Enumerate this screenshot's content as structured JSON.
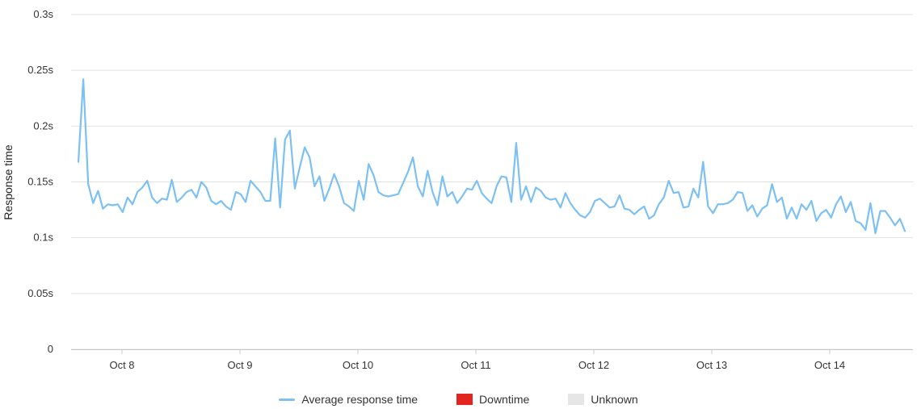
{
  "chart_data": {
    "type": "line",
    "ylabel": "Response time",
    "yticks": [
      "0",
      "0.05s",
      "0.1s",
      "0.15s",
      "0.2s",
      "0.25s",
      "0.3s"
    ],
    "ylim": [
      0,
      0.3
    ],
    "xticks": [
      "Oct 8",
      "Oct 9",
      "Oct 10",
      "Oct 11",
      "Oct 12",
      "Oct 13",
      "Oct 14"
    ],
    "grid": true,
    "legend_position": "bottom",
    "colors": {
      "line": "#7cc0f4",
      "downtime": "#e32522",
      "unknown": "#e6e6e6",
      "grid": "#e2e2e2"
    },
    "series": [
      {
        "name": "Average response time",
        "values": [
          0.168,
          0.242,
          0.148,
          0.131,
          0.142,
          0.126,
          0.13,
          0.129,
          0.13,
          0.123,
          0.136,
          0.13,
          0.141,
          0.145,
          0.151,
          0.136,
          0.131,
          0.135,
          0.134,
          0.152,
          0.132,
          0.136,
          0.141,
          0.143,
          0.136,
          0.15,
          0.145,
          0.133,
          0.13,
          0.133,
          0.128,
          0.125,
          0.141,
          0.139,
          0.132,
          0.151,
          0.146,
          0.141,
          0.133,
          0.133,
          0.189,
          0.127,
          0.188,
          0.196,
          0.144,
          0.163,
          0.181,
          0.172,
          0.146,
          0.155,
          0.133,
          0.144,
          0.157,
          0.146,
          0.131,
          0.128,
          0.124,
          0.151,
          0.134,
          0.166,
          0.156,
          0.141,
          0.138,
          0.137,
          0.138,
          0.139,
          0.149,
          0.159,
          0.172,
          0.146,
          0.137,
          0.16,
          0.141,
          0.129,
          0.155,
          0.137,
          0.141,
          0.131,
          0.137,
          0.144,
          0.143,
          0.151,
          0.14,
          0.135,
          0.131,
          0.146,
          0.155,
          0.154,
          0.132,
          0.185,
          0.134,
          0.146,
          0.132,
          0.145,
          0.142,
          0.136,
          0.134,
          0.135,
          0.127,
          0.14,
          0.131,
          0.125,
          0.12,
          0.118,
          0.123,
          0.133,
          0.135,
          0.131,
          0.127,
          0.128,
          0.138,
          0.126,
          0.125,
          0.121,
          0.125,
          0.128,
          0.117,
          0.12,
          0.13,
          0.136,
          0.151,
          0.14,
          0.141,
          0.127,
          0.128,
          0.144,
          0.136,
          0.168,
          0.128,
          0.122,
          0.13,
          0.13,
          0.131,
          0.134,
          0.141,
          0.14,
          0.124,
          0.129,
          0.119,
          0.126,
          0.129,
          0.148,
          0.132,
          0.136,
          0.117,
          0.127,
          0.117,
          0.13,
          0.125,
          0.133,
          0.115,
          0.122,
          0.125,
          0.118,
          0.13,
          0.137,
          0.123,
          0.132,
          0.115,
          0.113,
          0.107,
          0.131,
          0.104,
          0.124,
          0.124,
          0.118,
          0.111,
          0.117,
          0.106
        ]
      }
    ],
    "legend": [
      {
        "label": "Average response time",
        "marker": "line",
        "color": "#7cc0f4"
      },
      {
        "label": "Downtime",
        "marker": "box",
        "color": "#e32522"
      },
      {
        "label": "Unknown",
        "marker": "box",
        "color": "#e6e6e6"
      }
    ]
  }
}
